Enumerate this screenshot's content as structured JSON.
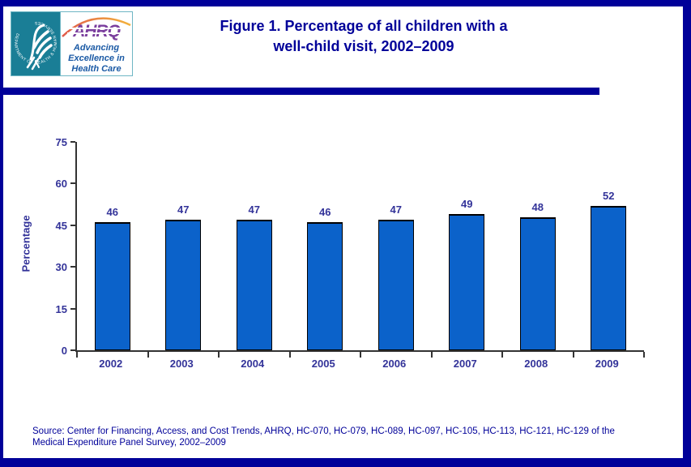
{
  "header": {
    "hhs_seal_text": "DEPARTMENT OF HEALTH & HUMAN SERVICES · USA",
    "ahrq_acronym": "AHRQ",
    "ahrq_tagline": "Advancing\nExcellence in\nHealth Care",
    "title": "Figure 1. Percentage of all children with a\nwell-child visit, 2002–2009"
  },
  "chart_data": {
    "type": "bar",
    "title": "Figure 1. Percentage of all children with a well-child visit, 2002–2009",
    "categories": [
      "2002",
      "2003",
      "2004",
      "2005",
      "2006",
      "2007",
      "2008",
      "2009"
    ],
    "values": [
      46,
      47,
      47,
      46,
      47,
      49,
      48,
      52
    ],
    "xlabel": "",
    "ylabel": "Percentage",
    "ylim": [
      0,
      75
    ],
    "yticks": [
      0,
      15,
      30,
      45,
      60,
      75
    ],
    "grid": false,
    "legend": "none",
    "value_labels_shown": true
  },
  "footer": {
    "source": "Source: Center for Financing, Access, and Cost Trends, AHRQ,  HC-070, HC-079, HC-089, HC-097, HC-105, HC-113, HC-121, HC-129 of the\nMedical Expenditure Panel Survey,  2002–2009"
  },
  "colors": {
    "frame": "#000099",
    "title_text": "#000099",
    "bar_fill": "#0b62ca",
    "bar_border": "#000000",
    "axis_line": "#333333",
    "axis_label_text": "#333399",
    "source_text": "#000099",
    "hhs_teal": "#1a7e96",
    "ahrq_purple": "#7b3f9e",
    "ahrq_tagline_blue": "#1b5aa5",
    "arc_gradient_start": "#e05a4a",
    "arc_gradient_end": "#f3b23a"
  }
}
